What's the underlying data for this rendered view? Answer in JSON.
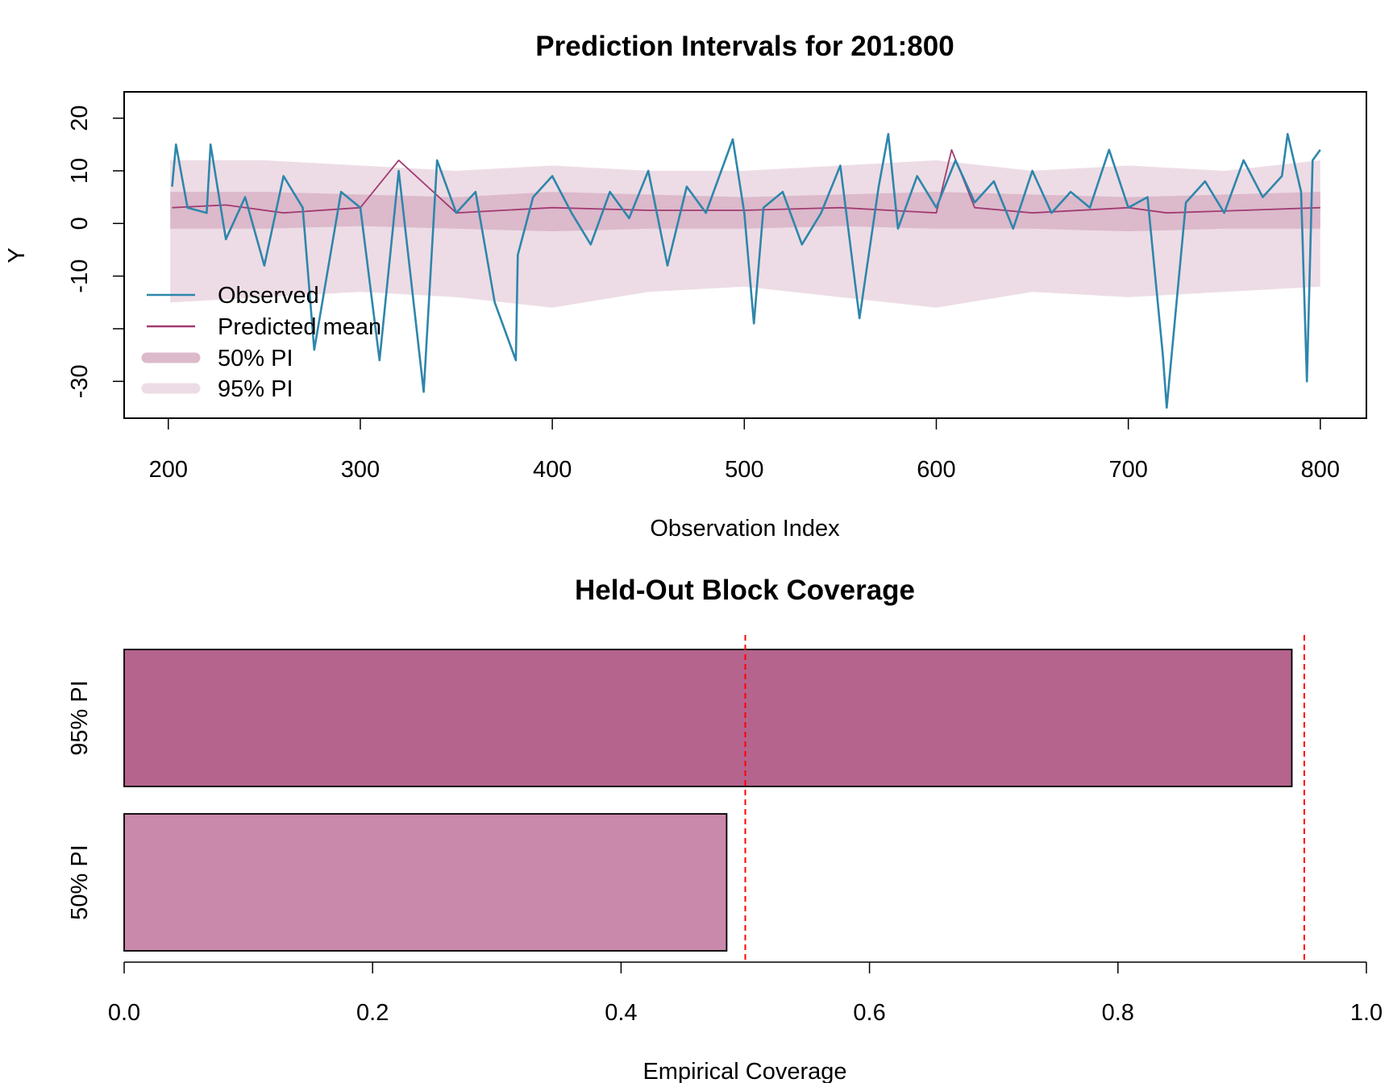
{
  "chart_data": [
    {
      "type": "line",
      "title": "Prediction Intervals for 201:800",
      "xlabel": "Observation Index",
      "ylabel": "Y",
      "xlim": [
        177,
        824
      ],
      "ylim": [
        -37,
        25
      ],
      "x_ticks": [
        200,
        300,
        400,
        500,
        600,
        700,
        800
      ],
      "x_tick_labels": [
        "200",
        "300",
        "400",
        "500",
        "600",
        "700",
        "800"
      ],
      "y_ticks": [
        -30,
        -20,
        -10,
        0,
        10,
        20
      ],
      "y_tick_labels": [
        "-30",
        "",
        "-10",
        "0",
        "10",
        "20"
      ],
      "x_range": [
        201,
        800
      ],
      "legend": {
        "position": "bottom-left",
        "items": [
          {
            "label": "Observed",
            "kind": "line",
            "color": "#2e86ab"
          },
          {
            "label": "Predicted mean",
            "kind": "line",
            "color": "#a23b72"
          },
          {
            "label": "50% PI",
            "kind": "band",
            "color": "#dcb9cb"
          },
          {
            "label": "95% PI",
            "kind": "band",
            "color": "#eddce5"
          }
        ]
      },
      "colors": {
        "observed": "#2e86ab",
        "mean": "#a23b72",
        "pi50": "#dcb9cb",
        "pi95": "#eddce5"
      },
      "series": [
        {
          "name": "Observed",
          "x": [
            202,
            204,
            210,
            220,
            222,
            230,
            240,
            250,
            260,
            270,
            276,
            290,
            300,
            310,
            320,
            333,
            340,
            350,
            360,
            370,
            381,
            382,
            390,
            400,
            410,
            420,
            430,
            440,
            450,
            460,
            470,
            480,
            490,
            494,
            500,
            505,
            510,
            520,
            530,
            540,
            550,
            560,
            570,
            575,
            580,
            590,
            600,
            610,
            620,
            630,
            640,
            650,
            660,
            670,
            680,
            690,
            700,
            710,
            718,
            720,
            730,
            740,
            750,
            760,
            770,
            780,
            783,
            790,
            793,
            796,
            800
          ],
          "values": [
            7,
            15,
            3,
            2,
            15,
            -3,
            5,
            -8,
            9,
            3,
            -24,
            6,
            3,
            -26,
            10,
            -32,
            12,
            2,
            6,
            -15,
            -26,
            -6,
            5,
            9,
            2,
            -4,
            6,
            1,
            10,
            -8,
            7,
            2,
            12,
            16,
            2,
            -19,
            3,
            6,
            -4,
            2,
            11,
            -18,
            7,
            17,
            -1,
            9,
            3,
            12,
            4,
            8,
            -1,
            10,
            2,
            6,
            3,
            14,
            3,
            5,
            -25,
            -35,
            4,
            8,
            2,
            12,
            5,
            9,
            17,
            6,
            -30,
            12,
            14
          ]
        },
        {
          "name": "Predicted mean",
          "x": [
            202,
            230,
            260,
            300,
            320,
            350,
            400,
            450,
            500,
            550,
            600,
            608,
            620,
            650,
            700,
            720,
            760,
            800
          ],
          "values": [
            3,
            3.5,
            2,
            3,
            12,
            2,
            3,
            2.5,
            2.5,
            3,
            2,
            14,
            3,
            2,
            3,
            2,
            2.5,
            3
          ]
        },
        {
          "name": "50% PI",
          "x": [
            202,
            250,
            300,
            350,
            400,
            450,
            500,
            550,
            600,
            650,
            700,
            750,
            800
          ],
          "upper": [
            6,
            6,
            5.5,
            5,
            6,
            5.5,
            5,
            5.5,
            6,
            5.5,
            5,
            5.5,
            6
          ],
          "lower": [
            -1,
            -1,
            -0.5,
            -1,
            -1.5,
            -1,
            -1,
            -0.5,
            -1,
            -1,
            -1.5,
            -1,
            -1
          ]
        },
        {
          "name": "95% PI",
          "x": [
            202,
            250,
            300,
            350,
            400,
            450,
            500,
            550,
            600,
            650,
            700,
            750,
            800
          ],
          "upper": [
            12,
            12,
            11,
            10,
            11,
            10,
            10,
            11,
            12,
            10,
            11,
            10,
            12
          ],
          "lower": [
            -15,
            -14,
            -13,
            -14,
            -16,
            -13,
            -12,
            -14,
            -16,
            -13,
            -14,
            -13,
            -12
          ]
        }
      ]
    },
    {
      "type": "bar",
      "orientation": "horizontal",
      "title": "Held-Out Block Coverage",
      "xlabel": "Empirical Coverage",
      "ylabel": "",
      "xlim": [
        0,
        1
      ],
      "x_ticks": [
        0,
        0.2,
        0.4,
        0.6,
        0.8,
        1.0
      ],
      "x_tick_labels": [
        "0.0",
        "0.2",
        "0.4",
        "0.6",
        "0.8",
        "1.0"
      ],
      "categories": [
        "95% PI",
        "50% PI"
      ],
      "values": [
        0.94,
        0.485
      ],
      "bar_colors": [
        "#b5648d",
        "#c989ab"
      ],
      "reference_lines": [
        0.5,
        0.95
      ],
      "reference_line_color": "#ff0000"
    }
  ]
}
